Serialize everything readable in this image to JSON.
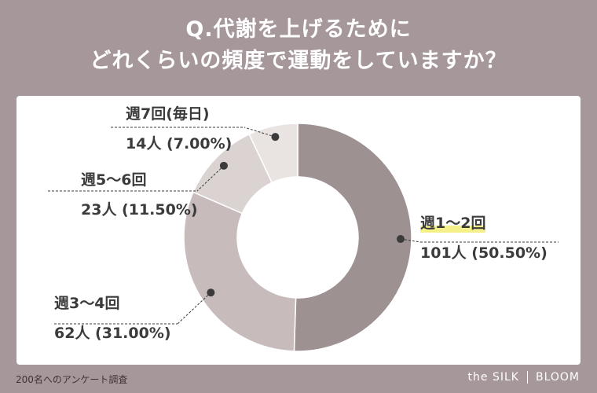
{
  "title": {
    "line1": "Q.代謝を上げるために",
    "line2": "どれくらいの頻度で運動をしていますか？"
  },
  "chart_data": {
    "type": "pie",
    "title": "Q.代謝を上げるために どれくらいの頻度で運動をしていますか？",
    "categories": [
      "週1〜2回",
      "週3〜4回",
      "週5〜6回",
      "週7回(毎日)"
    ],
    "counts": [
      101,
      62,
      23,
      14
    ],
    "values": [
      50.5,
      31.0,
      11.5,
      7.0
    ],
    "value_labels": [
      "101人 (50.50%)",
      "62人 (31.00%)",
      "23人 (11.50%)",
      "14人 (7.00%)"
    ],
    "colors": [
      "#9d9192",
      "#c7bbbb",
      "#dbd3d2",
      "#e9e3e2"
    ],
    "donut": true,
    "start": "top",
    "direction": "clockwise"
  },
  "footer": {
    "note": "200名へのアンケート調査",
    "brand_left": "the SILK",
    "brand_right": "BLOOM"
  }
}
